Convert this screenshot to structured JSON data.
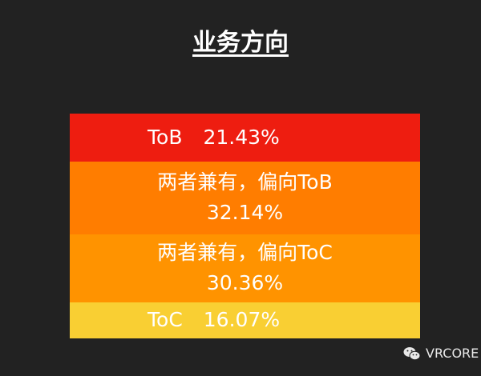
{
  "chart_data": {
    "type": "bar",
    "stacked": true,
    "title": "业务方向",
    "categories": [
      "ToB",
      "两者兼有，偏向ToB",
      "两者兼有，偏向ToC",
      "ToC"
    ],
    "values": [
      21.43,
      32.14,
      30.36,
      16.07
    ],
    "value_labels": [
      "21.43%",
      "32.14%",
      "30.36%",
      "16.07%"
    ],
    "colors": [
      "#EE1D10",
      "#FF7D00",
      "#FF9300",
      "#F9CF33"
    ],
    "legend": "none",
    "grid": false
  },
  "watermark": {
    "text": "VRCORE",
    "icon": "wechat-icon"
  }
}
